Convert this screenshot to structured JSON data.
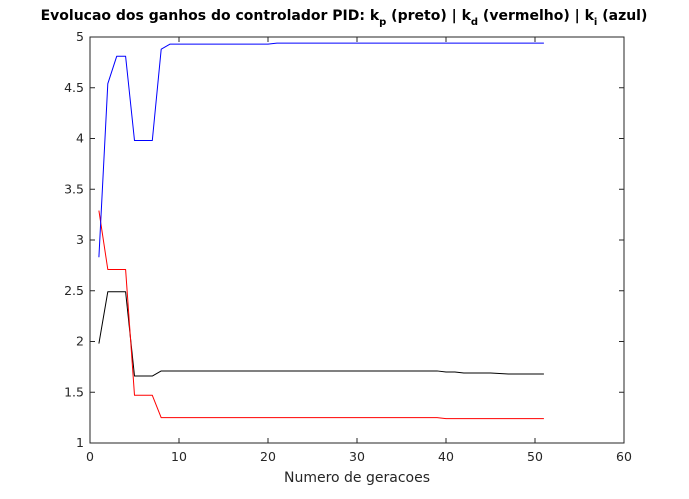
{
  "chart_data": {
    "type": "line",
    "title": {
      "prefix": "Evolucao dos ganhos do controlador PID: k",
      "kp_sub": "p",
      "kp_desc": " (preto) | k",
      "kd_sub": "d",
      "kd_desc": " (vermelho) | k",
      "ki_sub": "i",
      "ki_desc": " (azul)"
    },
    "xlabel": "Numero de geracoes",
    "ylabel": "",
    "xlim": [
      0,
      60
    ],
    "ylim": [
      1,
      5
    ],
    "xticks": [
      0,
      10,
      20,
      30,
      40,
      50,
      60
    ],
    "yticks": [
      1,
      1.5,
      2,
      2.5,
      3,
      3.5,
      4,
      4.5,
      5
    ],
    "ytick_labels": [
      "1",
      "1.5",
      "2",
      "2.5",
      "3",
      "3.5",
      "4",
      "4.5",
      "5"
    ],
    "grid": false,
    "series": [
      {
        "name": "k_p (preto)",
        "color": "#000000",
        "x": [
          1,
          2,
          3,
          4,
          5,
          6,
          7,
          8,
          9,
          10,
          20,
          39,
          40,
          41,
          42,
          45,
          47,
          51
        ],
        "y": [
          1.98,
          2.49,
          2.49,
          2.49,
          1.66,
          1.66,
          1.66,
          1.71,
          1.71,
          1.71,
          1.71,
          1.71,
          1.7,
          1.7,
          1.69,
          1.69,
          1.68,
          1.68
        ]
      },
      {
        "name": "k_d (vermelho)",
        "color": "#ff0000",
        "x": [
          1,
          2,
          3,
          4,
          5,
          6,
          7,
          8,
          9,
          10,
          20,
          39,
          40,
          45,
          51
        ],
        "y": [
          3.29,
          2.71,
          2.71,
          2.71,
          1.47,
          1.47,
          1.47,
          1.25,
          1.25,
          1.25,
          1.25,
          1.25,
          1.24,
          1.24,
          1.24
        ]
      },
      {
        "name": "k_i (azul)",
        "color": "#0000ff",
        "x": [
          1,
          2,
          3,
          4,
          5,
          6,
          7,
          8,
          9,
          10,
          20,
          21,
          40,
          51
        ],
        "y": [
          2.83,
          4.54,
          4.81,
          4.81,
          3.98,
          3.98,
          3.98,
          4.88,
          4.93,
          4.93,
          4.93,
          4.94,
          4.94,
          4.94
        ]
      }
    ]
  }
}
